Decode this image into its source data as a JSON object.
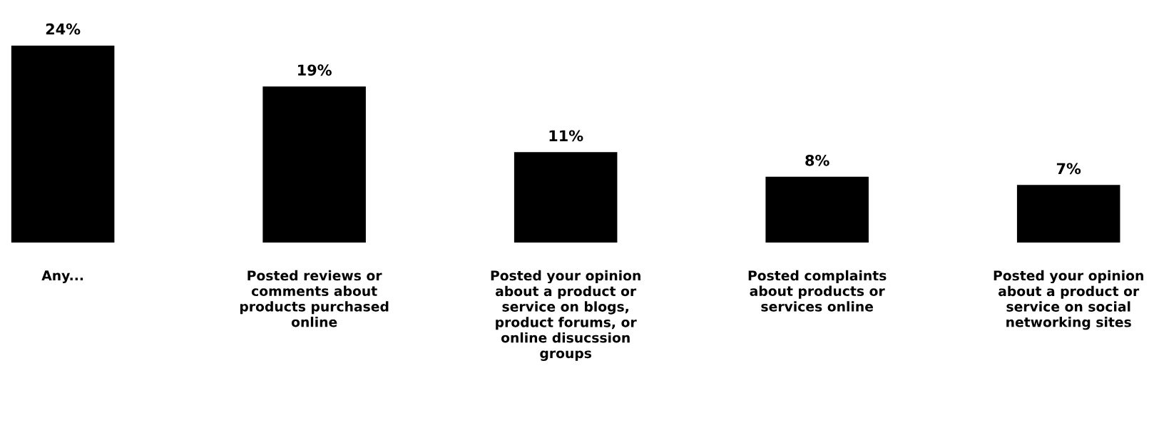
{
  "chart_data": {
    "type": "bar",
    "categories": [
      "Any...",
      "Posted reviews or\ncomments about\nproducts purchased\nonline",
      "Posted your opinion\nabout a product or\nservice on blogs,\nproduct forums, or\nonline disucssion\ngroups",
      "Posted complaints\nabout products or\nservices online",
      "Posted your opinion\nabout a product or\nservice on social\nnetworking sites"
    ],
    "values": [
      24,
      19,
      11,
      8,
      7
    ],
    "value_labels": [
      "24%",
      "19%",
      "11%",
      "8%",
      "7%"
    ],
    "color": "#000000",
    "grid": false,
    "legend": false
  }
}
